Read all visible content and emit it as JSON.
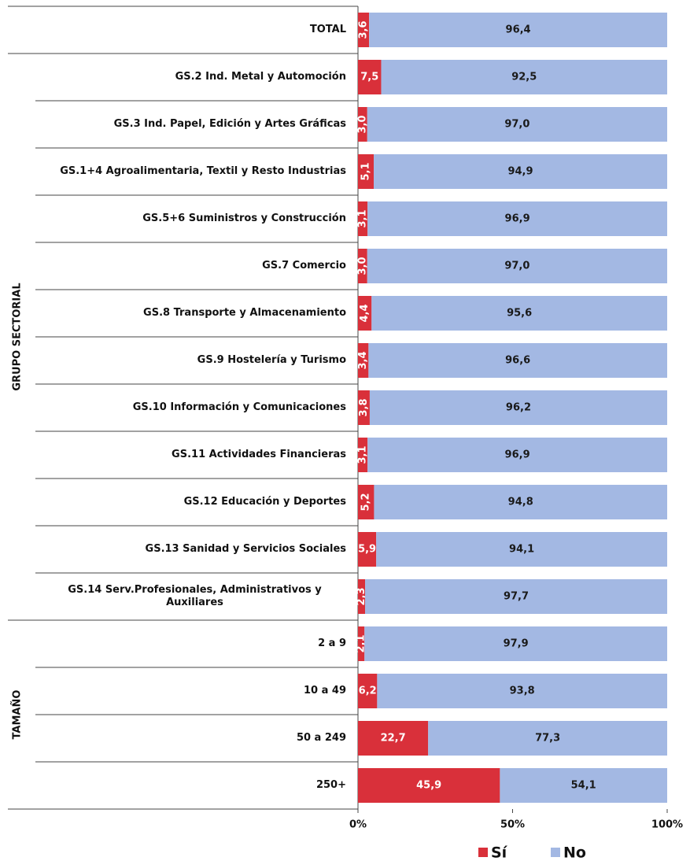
{
  "chart_data": {
    "type": "stacked_bar_horizontal",
    "categories": [
      "TOTAL",
      "GS.2 Ind. Metal y Automoción",
      "GS.3 Ind. Papel, Edición y Artes Gráficas",
      "GS.1+4 Agroalimentaria, Textil y Resto Industrias",
      "GS.5+6 Suministros y Construcción",
      "GS.7 Comercio",
      "GS.8 Transporte y Almacenamiento",
      "GS.9 Hostelería y Turismo",
      "GS.10 Información y Comunicaciones",
      "GS.11 Actividades Financieras",
      "GS.12 Educación y Deportes",
      "GS.13 Sanidad y Servicios Sociales",
      "GS.14 Serv.Profesionales, Administrativos y Auxiliares",
      "2 a 9",
      "10 a 49",
      "50 a 249",
      "250+"
    ],
    "group_labels": [
      "GRUPO SECTORIAL",
      "TAMAÑO"
    ],
    "series": [
      {
        "name": "Sí",
        "color": "#d9303a",
        "values": [
          3.6,
          7.5,
          3.0,
          5.1,
          3.1,
          3.0,
          4.4,
          3.4,
          3.8,
          3.1,
          5.2,
          5.9,
          2.3,
          2.1,
          6.2,
          22.7,
          45.9
        ],
        "value_labels": [
          "3,6",
          "7,5",
          "3,0",
          "5,1",
          "3,1",
          "3,0",
          "4,4",
          "3,4",
          "3,8",
          "3,1",
          "5,2",
          "5,9",
          "2,3",
          "2,1",
          "6,2",
          "22,7",
          "45,9"
        ]
      },
      {
        "name": "No",
        "color": "#a3b8e3",
        "values": [
          96.4,
          92.5,
          97.0,
          94.9,
          96.9,
          97.0,
          95.6,
          96.6,
          96.2,
          96.9,
          94.8,
          94.1,
          97.7,
          97.9,
          93.8,
          77.3,
          54.1
        ],
        "value_labels": [
          "96,4",
          "92,5",
          "97,0",
          "94,9",
          "96,9",
          "97,0",
          "95,6",
          "96,6",
          "96,2",
          "96,9",
          "94,8",
          "94,1",
          "97,7",
          "97,9",
          "93,8",
          "77,3",
          "54,1"
        ]
      }
    ],
    "xlim": [
      0,
      100
    ],
    "xticks": [
      {
        "value": 0,
        "label": "0%"
      },
      {
        "value": 50,
        "label": "50%"
      },
      {
        "value": 100,
        "label": "100%"
      }
    ],
    "legend": "bottom"
  }
}
